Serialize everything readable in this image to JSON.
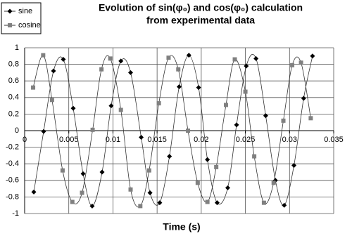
{
  "chart_data": {
    "type": "scatter",
    "title": [
      "Evolution of sin(φ₀) and cos(φ₀) calculation",
      "from experimental data"
    ],
    "x_label": "Time (s)",
    "xlim": [
      0,
      0.035
    ],
    "xticks": [
      0,
      0.005,
      0.01,
      0.015,
      0.02,
      0.025,
      0.03,
      0.035
    ],
    "ylim": [
      -1,
      1
    ],
    "yticks": [
      -1,
      -0.8,
      -0.6,
      -0.4,
      -0.2,
      0,
      0.2,
      0.4,
      0.6,
      0.8,
      1
    ],
    "grid": true,
    "legend": "top-left",
    "series": [
      {
        "name": "sine",
        "color": "#000000",
        "marker": "diamond",
        "x": [
          0.00104,
          0.00215,
          0.00327,
          0.00438,
          0.0055,
          0.00662,
          0.00765,
          0.00877,
          0.0098,
          0.0109,
          0.012,
          0.0132,
          0.0142,
          0.0153,
          0.0164,
          0.0175,
          0.0186,
          0.0197,
          0.0207,
          0.0218,
          0.023,
          0.024,
          0.0251,
          0.0262,
          0.0273,
          0.0284,
          0.0294,
          0.0305,
          0.0316,
          0.0326
        ],
        "values": [
          -0.74,
          -0.01,
          0.72,
          0.86,
          0.27,
          -0.52,
          -0.91,
          -0.5,
          0.3,
          0.84,
          0.7,
          -0.08,
          -0.75,
          -0.87,
          -0.31,
          0.53,
          0.91,
          0.52,
          -0.35,
          -0.87,
          -0.69,
          0.07,
          0.78,
          0.87,
          0.18,
          -0.6,
          -0.9,
          -0.42,
          0.39,
          0.9
        ]
      },
      {
        "name": "cosine",
        "color": "#808080",
        "marker": "square",
        "x": [
          0.00096,
          0.0021,
          0.0031,
          0.0043,
          0.0054,
          0.0065,
          0.0077,
          0.0087,
          0.0097,
          0.0109,
          0.012,
          0.0131,
          0.0141,
          0.0152,
          0.0163,
          0.0174,
          0.0185,
          0.0196,
          0.0207,
          0.0217,
          0.0228,
          0.0238,
          0.025,
          0.026,
          0.0271,
          0.0282,
          0.0293,
          0.0303,
          0.0313,
          0.0324
        ],
        "values": [
          0.52,
          0.91,
          0.37,
          -0.48,
          -0.86,
          -0.75,
          0.01,
          0.74,
          0.87,
          0.25,
          -0.71,
          -0.91,
          -0.48,
          0.33,
          0.88,
          0.74,
          0,
          -0.63,
          -0.86,
          -0.44,
          0.31,
          0.86,
          0.47,
          -0.31,
          -0.87,
          -0.63,
          0.12,
          0.79,
          0.82,
          0.15
        ]
      }
    ]
  }
}
